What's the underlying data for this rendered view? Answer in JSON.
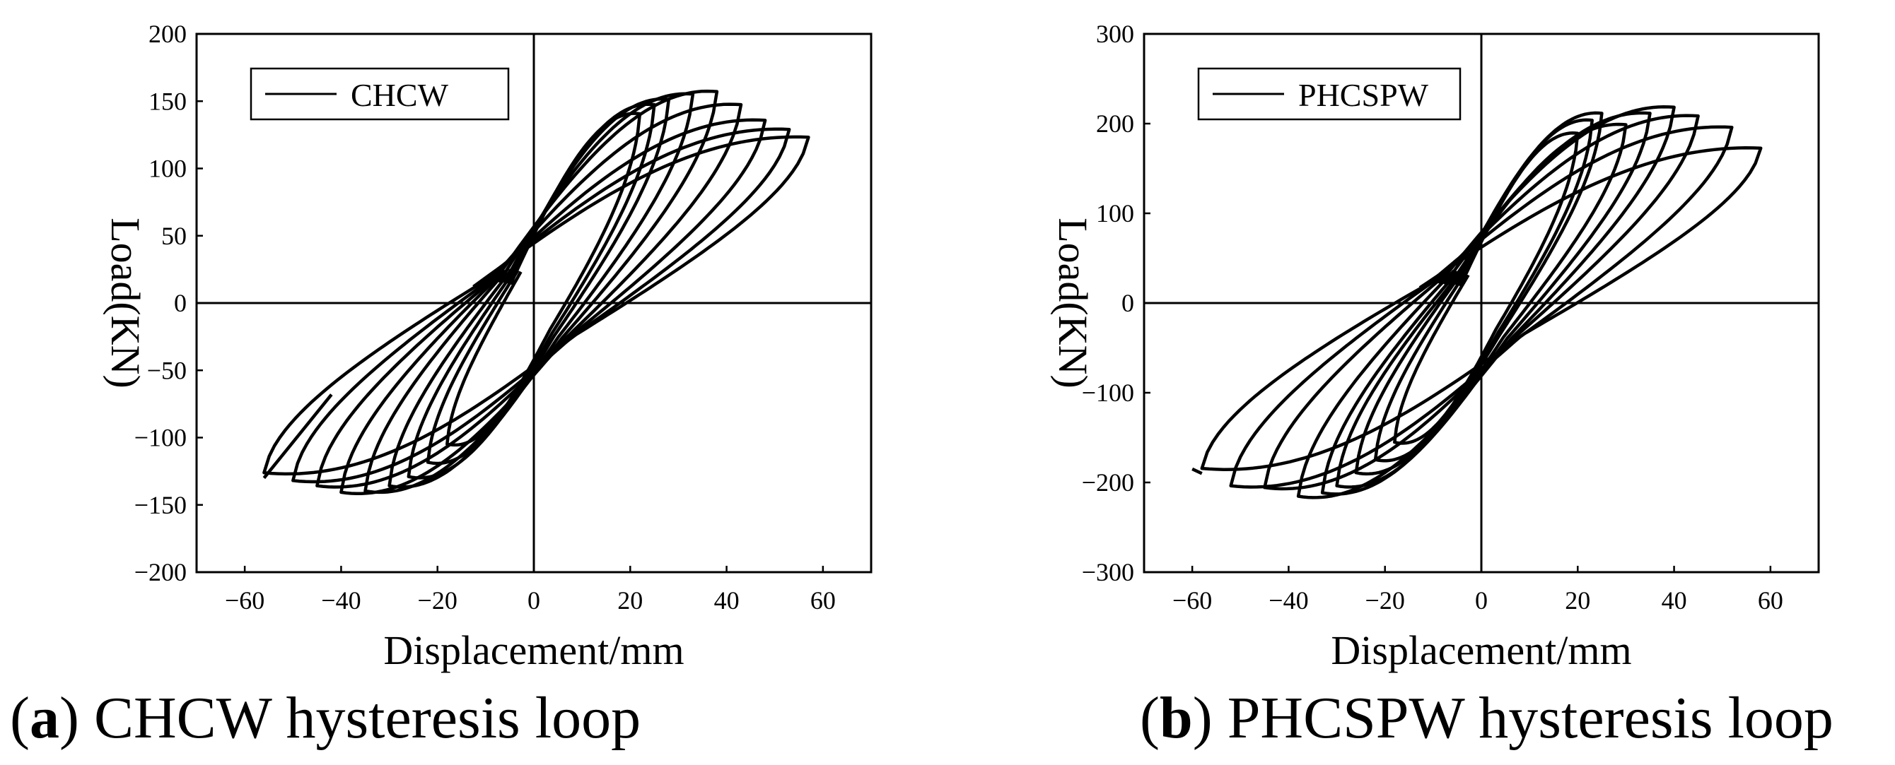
{
  "chart_data": [
    {
      "type": "line",
      "panel": "a",
      "legend": "CHCW",
      "legend_position": "top-left",
      "xlabel": "Displacement/mm",
      "ylabel": "Load(KN)",
      "xlim": [
        -70,
        70
      ],
      "ylim": [
        -200,
        200
      ],
      "xticks": [
        -60,
        -40,
        -20,
        0,
        20,
        40,
        60
      ],
      "yticks": [
        -200,
        -150,
        -100,
        -50,
        0,
        50,
        100,
        150,
        200
      ],
      "loops": [
        {
          "xmax": 22,
          "pmax": 145,
          "xmin": -18,
          "pmin": -108
        },
        {
          "xmax": 25,
          "pmax": 152,
          "xmin": -22,
          "pmin": -122
        },
        {
          "xmax": 28,
          "pmax": 156,
          "xmin": -26,
          "pmin": -133
        },
        {
          "xmax": 33,
          "pmax": 160,
          "xmin": -30,
          "pmin": -140
        },
        {
          "xmax": 38,
          "pmax": 162,
          "xmin": -35,
          "pmin": -144
        },
        {
          "xmax": 43,
          "pmax": 152,
          "xmin": -40,
          "pmin": -145
        },
        {
          "xmax": 48,
          "pmax": 140,
          "xmin": -45,
          "pmin": -140
        },
        {
          "xmax": 53,
          "pmax": 133,
          "xmin": -50,
          "pmin": -136
        },
        {
          "xmax": 57,
          "pmax": 127,
          "xmin": -56,
          "pmin": -130
        }
      ],
      "tail": {
        "x": -42,
        "y": -68
      }
    },
    {
      "type": "line",
      "panel": "b",
      "legend": "PHCSPW",
      "legend_position": "top-left",
      "xlabel": "Displacement/mm",
      "ylabel": "Load(KN)",
      "xlim": [
        -70,
        70
      ],
      "ylim": [
        -300,
        300
      ],
      "xticks": [
        -60,
        -40,
        -20,
        0,
        20,
        40,
        60
      ],
      "yticks": [
        -300,
        -200,
        -100,
        0,
        100,
        200,
        300
      ],
      "loops": [
        {
          "xmax": 20,
          "pmax": 195,
          "xmin": -18,
          "pmin": -160
        },
        {
          "xmax": 23,
          "pmax": 210,
          "xmin": -22,
          "pmin": -180
        },
        {
          "xmax": 25,
          "pmax": 218,
          "xmin": -26,
          "pmin": -195
        },
        {
          "xmax": 30,
          "pmax": 205,
          "xmin": -30,
          "pmin": -210
        },
        {
          "xmax": 35,
          "pmax": 218,
          "xmin": -33,
          "pmin": -218
        },
        {
          "xmax": 40,
          "pmax": 225,
          "xmin": -38,
          "pmin": -222
        },
        {
          "xmax": 45,
          "pmax": 215,
          "xmin": -45,
          "pmin": -212
        },
        {
          "xmax": 52,
          "pmax": 202,
          "xmin": -52,
          "pmin": -210
        },
        {
          "xmax": 58,
          "pmax": 178,
          "xmin": -58,
          "pmin": -190
        }
      ],
      "tail": {
        "x": -60,
        "y": -185
      }
    }
  ],
  "captions": {
    "a_letter": "a",
    "a_text": " CHCW hysteresis loop",
    "b_letter": "b",
    "b_text": " PHCSPW hysteresis loop"
  }
}
